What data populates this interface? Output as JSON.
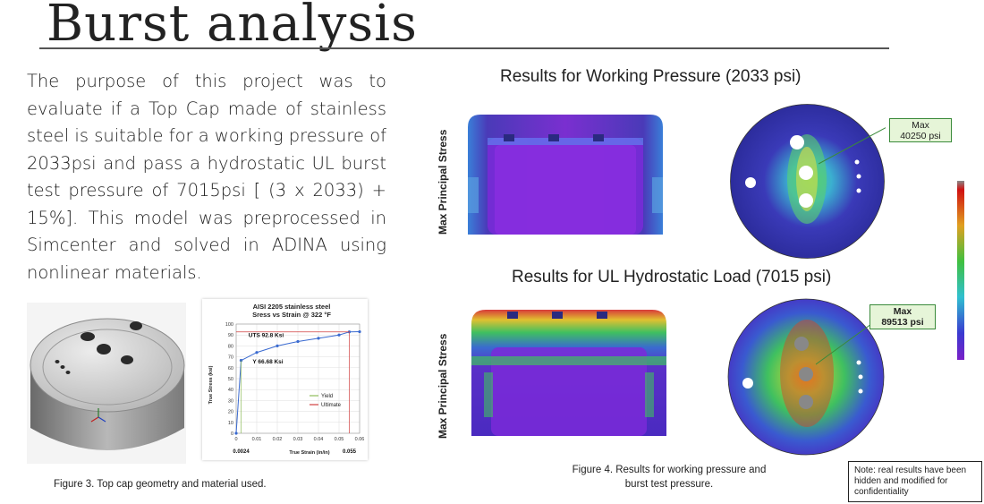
{
  "slide": {
    "title": "Burst analysis",
    "body": "The purpose of this project was to evaluate if a Top Cap made of stainless steel is suitable for a working pressure of 2033psi and pass a hydrostatic UL burst test pressure of 7015psi [ (3 x 2033) + 15%]. This model was preprocessed in Simcenter and solved in ADINA using nonlinear materials."
  },
  "figure3": {
    "caption": "Figure 3. Top cap geometry and material used."
  },
  "chart_data": {
    "type": "line",
    "title": "AISI 2205 stainless steel",
    "subtitle": "Sress vs Strain @ 322 °F",
    "xlabel": "True Strain (in/in)",
    "ylabel": "True Stress (ksi)",
    "xlim": [
      0,
      0.06
    ],
    "ylim": [
      0,
      100
    ],
    "xticks": [
      "0",
      "0.01",
      "0.02",
      "0.03",
      "0.04",
      "0.05",
      "0.06"
    ],
    "yticks": [
      "0",
      "10",
      "20",
      "30",
      "40",
      "50",
      "60",
      "70",
      "80",
      "90",
      "100"
    ],
    "series": [
      {
        "name": "Yield",
        "color": "#8fbc5a",
        "x": [
          0,
          0.0024
        ],
        "y": [
          0,
          66.68
        ]
      },
      {
        "name": "Ultimate",
        "color": "#d04040",
        "x": [
          0.0024,
          0.01,
          0.02,
          0.03,
          0.04,
          0.05,
          0.055,
          0.06
        ],
        "y": [
          66.68,
          74,
          80,
          84,
          87,
          90,
          92.8,
          93
        ]
      }
    ],
    "annotations": {
      "uts": "UTS 92.8 Ksi",
      "yield": "Y 66.68 Ksi",
      "strain_low": "0.0024",
      "strain_high": "0.055"
    },
    "legend_position": "right",
    "grid": true
  },
  "results": {
    "working_title": "Results for Working Pressure (2033 psi)",
    "hydro_title": "Results for UL Hydrostatic Load (7015 psi)",
    "axis_label": "Max Principal Stress",
    "callout_working": "Max\n40250 psi",
    "callout_hydro": "Max\n89513 psi"
  },
  "figure4": {
    "caption": "Figure 4. Results for working pressure and burst test pressure."
  },
  "note": "Note: real results have been hidden and modified for confidentiality",
  "colors": {
    "fem_low": "#3a2fa0",
    "fem_mid": "#3fb85a",
    "fem_high": "#e0201a",
    "callout_fill": "#e6f5d8"
  }
}
